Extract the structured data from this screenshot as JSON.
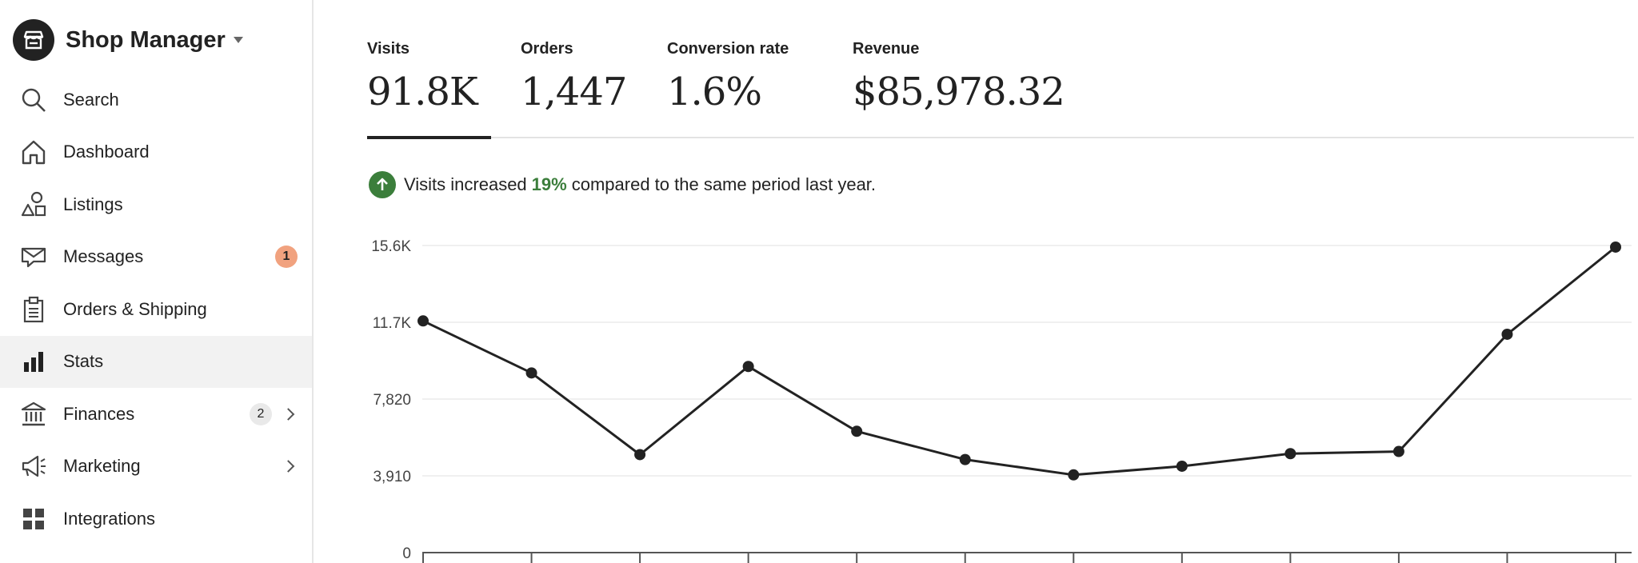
{
  "sidebar": {
    "title": "Shop Manager",
    "items": [
      {
        "label": "Search",
        "icon": "search-icon"
      },
      {
        "label": "Dashboard",
        "icon": "home-icon"
      },
      {
        "label": "Listings",
        "icon": "shapes-icon"
      },
      {
        "label": "Messages",
        "icon": "envelope-icon",
        "badge": "1"
      },
      {
        "label": "Orders & Shipping",
        "icon": "clipboard-icon"
      },
      {
        "label": "Stats",
        "icon": "bar-chart-icon",
        "active": true
      },
      {
        "label": "Finances",
        "icon": "bank-icon",
        "badge": "2"
      },
      {
        "label": "Marketing",
        "icon": "megaphone-icon"
      },
      {
        "label": "Integrations",
        "icon": "grid-icon"
      }
    ]
  },
  "metrics": [
    {
      "label": "Visits",
      "value": "91.8K"
    },
    {
      "label": "Orders",
      "value": "1,447"
    },
    {
      "label": "Conversion rate",
      "value": "1.6%"
    },
    {
      "label": "Revenue",
      "value": "$85,978.32"
    }
  ],
  "insight": {
    "prefix": "Visits increased",
    "percent": "19%",
    "suffix": "compared to the same period last year."
  },
  "colors": {
    "accent_green": "#3b7e3b",
    "badge_orange": "#f1a27f",
    "line": "#222222"
  },
  "chart_data": {
    "type": "line",
    "y_tick_labels": [
      "0",
      "3,910",
      "7,820",
      "11.7K",
      "15.6K"
    ],
    "y_ticks": [
      0,
      3910,
      7820,
      11730,
      15640
    ],
    "ylim": [
      0,
      15640
    ],
    "grid": true,
    "series": [
      {
        "values": [
          11800,
          9150,
          4990,
          9480,
          6180,
          4740,
          3960,
          4400,
          5040,
          5150,
          11120,
          15560
        ]
      }
    ]
  }
}
